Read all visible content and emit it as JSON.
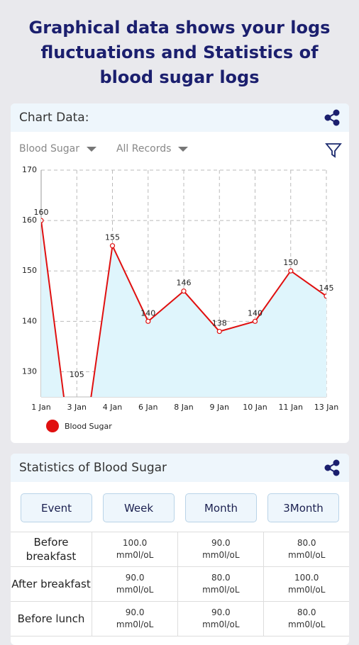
{
  "header": {
    "title": "Graphical data shows your logs fluctuations and Statistics of blood sugar logs"
  },
  "chart_card": {
    "title": "Chart Data:",
    "filters": [
      "Blood Sugar",
      "All Records"
    ]
  },
  "chart_data": {
    "type": "line",
    "categories": [
      "1 Jan",
      "3 Jan",
      "4 Jan",
      "6 Jan",
      "8 Jan",
      "9 Jan",
      "10 Jan",
      "11 Jan",
      "13 Jan"
    ],
    "series": [
      {
        "name": "Blood Sugar",
        "color": "#e01010",
        "values": [
          160,
          105,
          155,
          140,
          146,
          138,
          140,
          150,
          145
        ]
      }
    ],
    "ylim": [
      125,
      170
    ],
    "yticks": [
      130,
      140,
      150,
      160,
      170
    ],
    "grid": true,
    "area_color": "#dff5fc"
  },
  "stats": {
    "title": "Statistics of Blood Sugar",
    "tabs": [
      "Event",
      "Week",
      "Month",
      "3Month"
    ],
    "rows": [
      {
        "label": "Before breakfast",
        "cells": [
          {
            "value": "100.0",
            "unit": "mm0l/oL"
          },
          {
            "value": "90.0",
            "unit": "mm0l/oL"
          },
          {
            "value": "80.0",
            "unit": "mm0l/oL"
          }
        ]
      },
      {
        "label": "After breakfast",
        "cells": [
          {
            "value": "90.0",
            "unit": "mm0l/oL"
          },
          {
            "value": "80.0",
            "unit": "mm0l/oL"
          },
          {
            "value": "100.0",
            "unit": "mm0l/oL"
          }
        ]
      },
      {
        "label": "Before lunch",
        "cells": [
          {
            "value": "90.0",
            "unit": "mm0l/oL"
          },
          {
            "value": "90.0",
            "unit": "mm0l/oL"
          },
          {
            "value": "80.0",
            "unit": "mm0l/oL"
          }
        ]
      }
    ]
  }
}
